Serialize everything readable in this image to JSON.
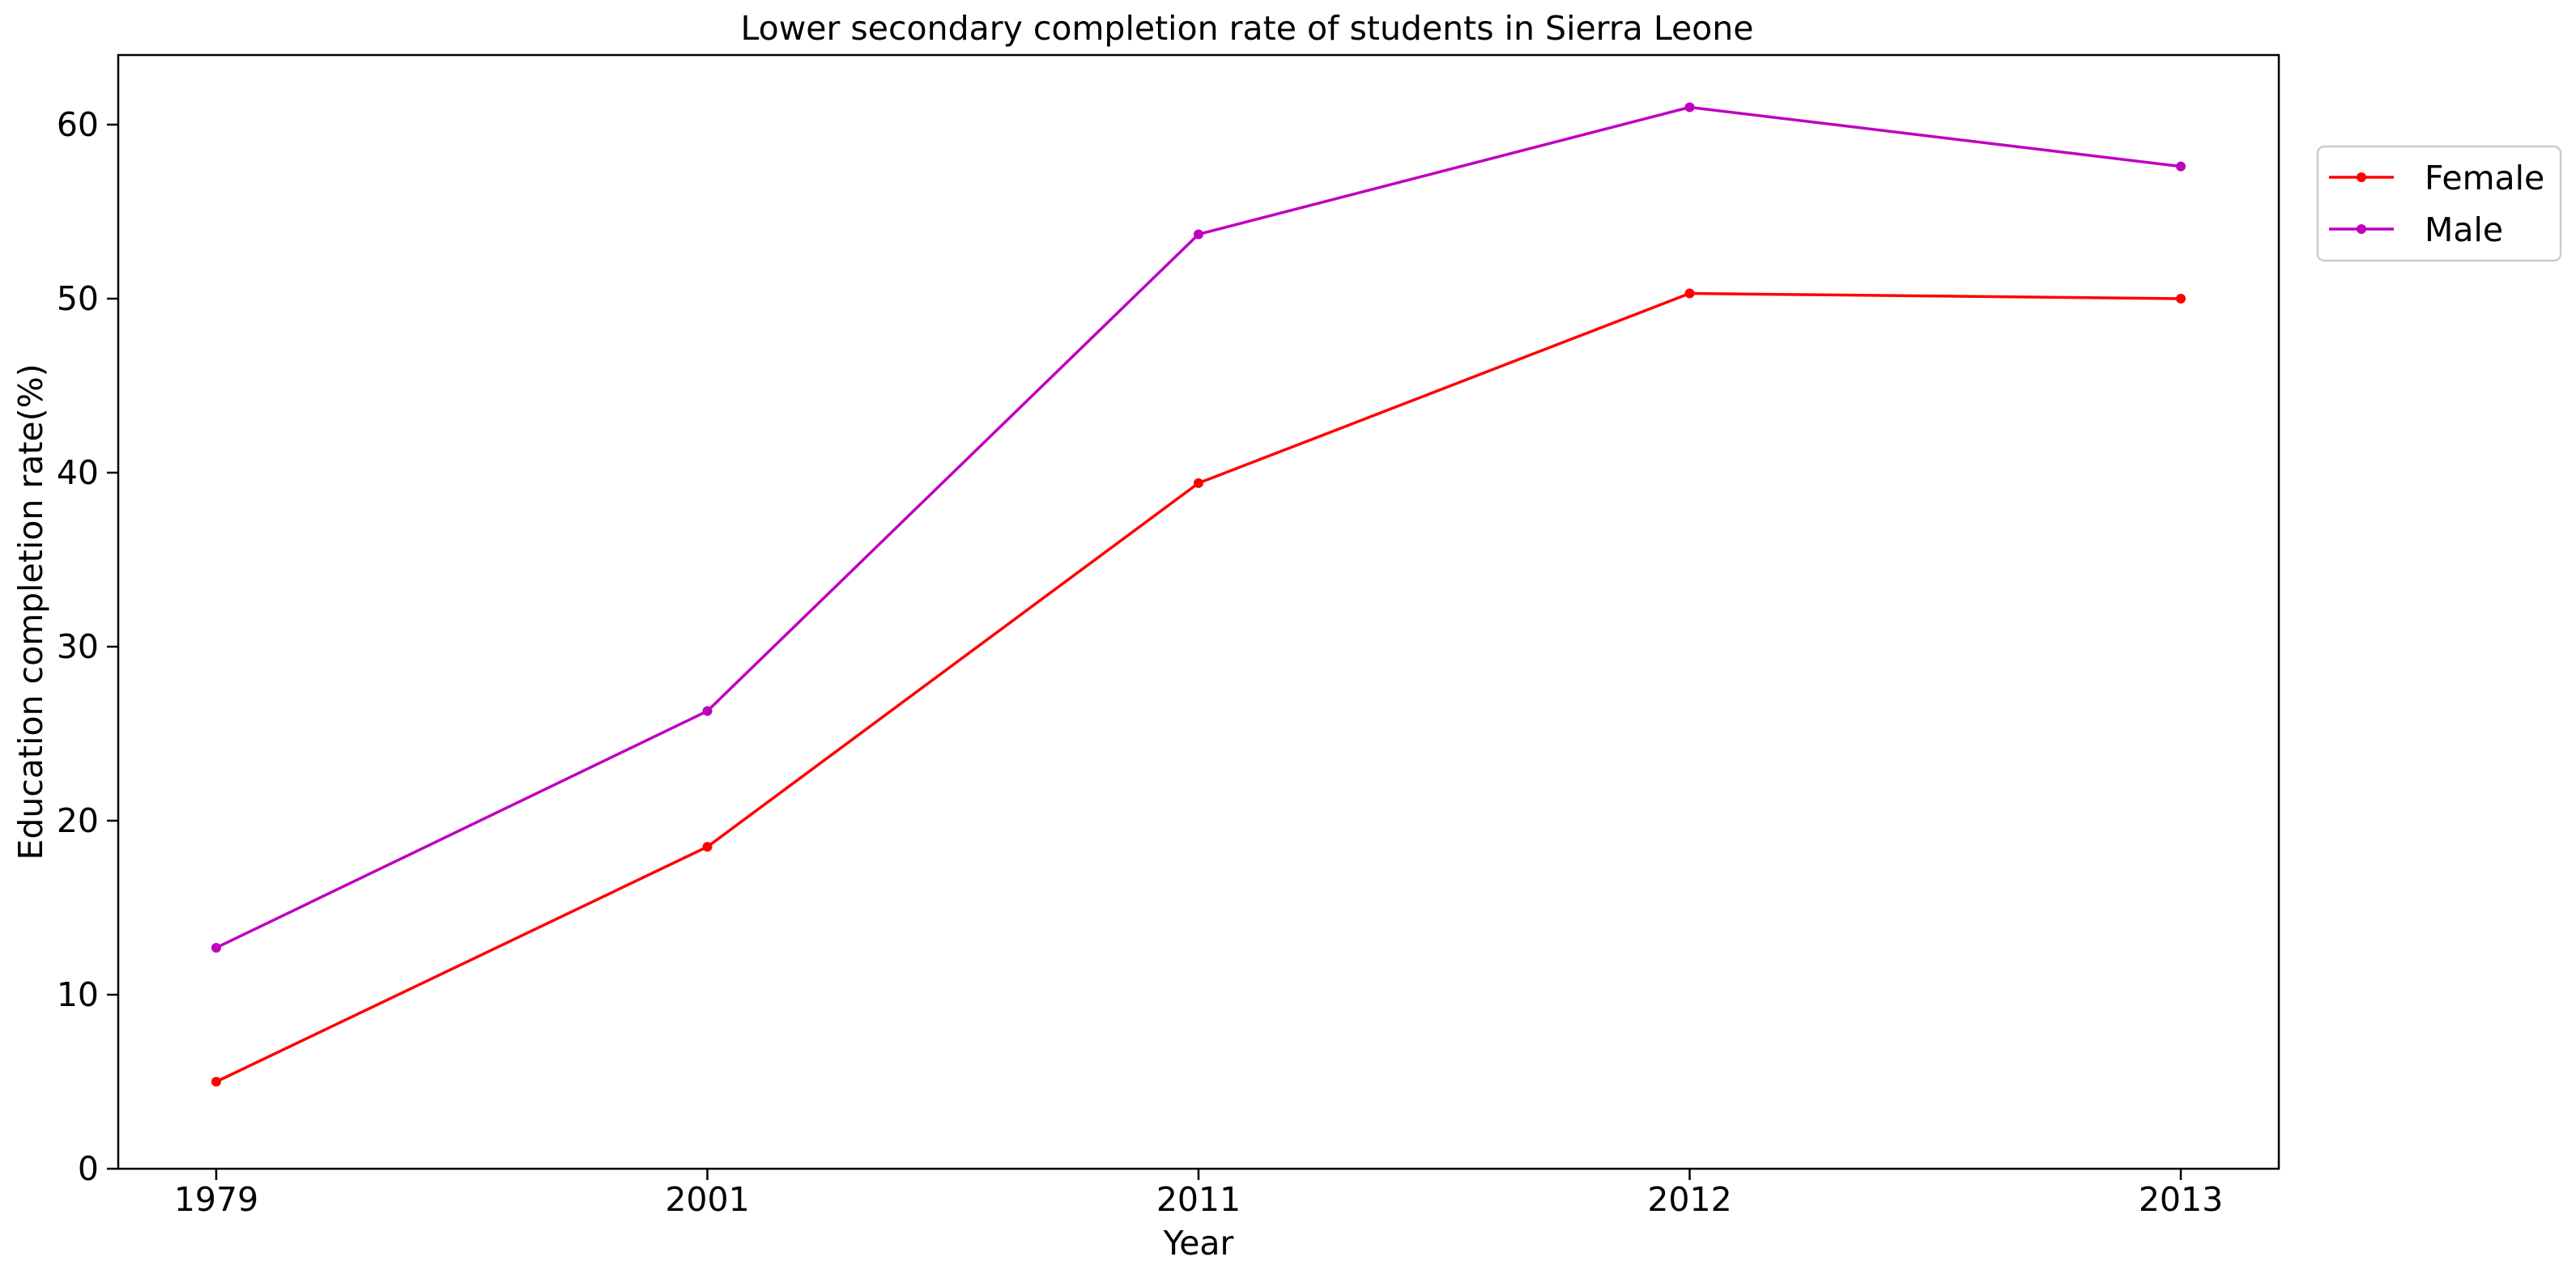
{
  "chart_data": {
    "type": "line",
    "title": "Lower secondary completion rate of students in Sierra Leone",
    "xlabel": "Year",
    "ylabel": "Education completion rate(%)",
    "categories": [
      "1979",
      "2001",
      "2011",
      "2012",
      "2013"
    ],
    "ylim": [
      0,
      64
    ],
    "yticks": [
      0,
      10,
      20,
      30,
      40,
      50,
      60
    ],
    "grid": false,
    "legend_position": "top-right, outside plot area",
    "series": [
      {
        "name": "Female",
        "color": "#ff0000",
        "values": [
          5.0,
          18.5,
          39.4,
          50.3,
          50.0
        ]
      },
      {
        "name": "Male",
        "color": "#bf00bf",
        "values": [
          12.7,
          26.3,
          53.7,
          61.0,
          57.6
        ]
      }
    ]
  }
}
